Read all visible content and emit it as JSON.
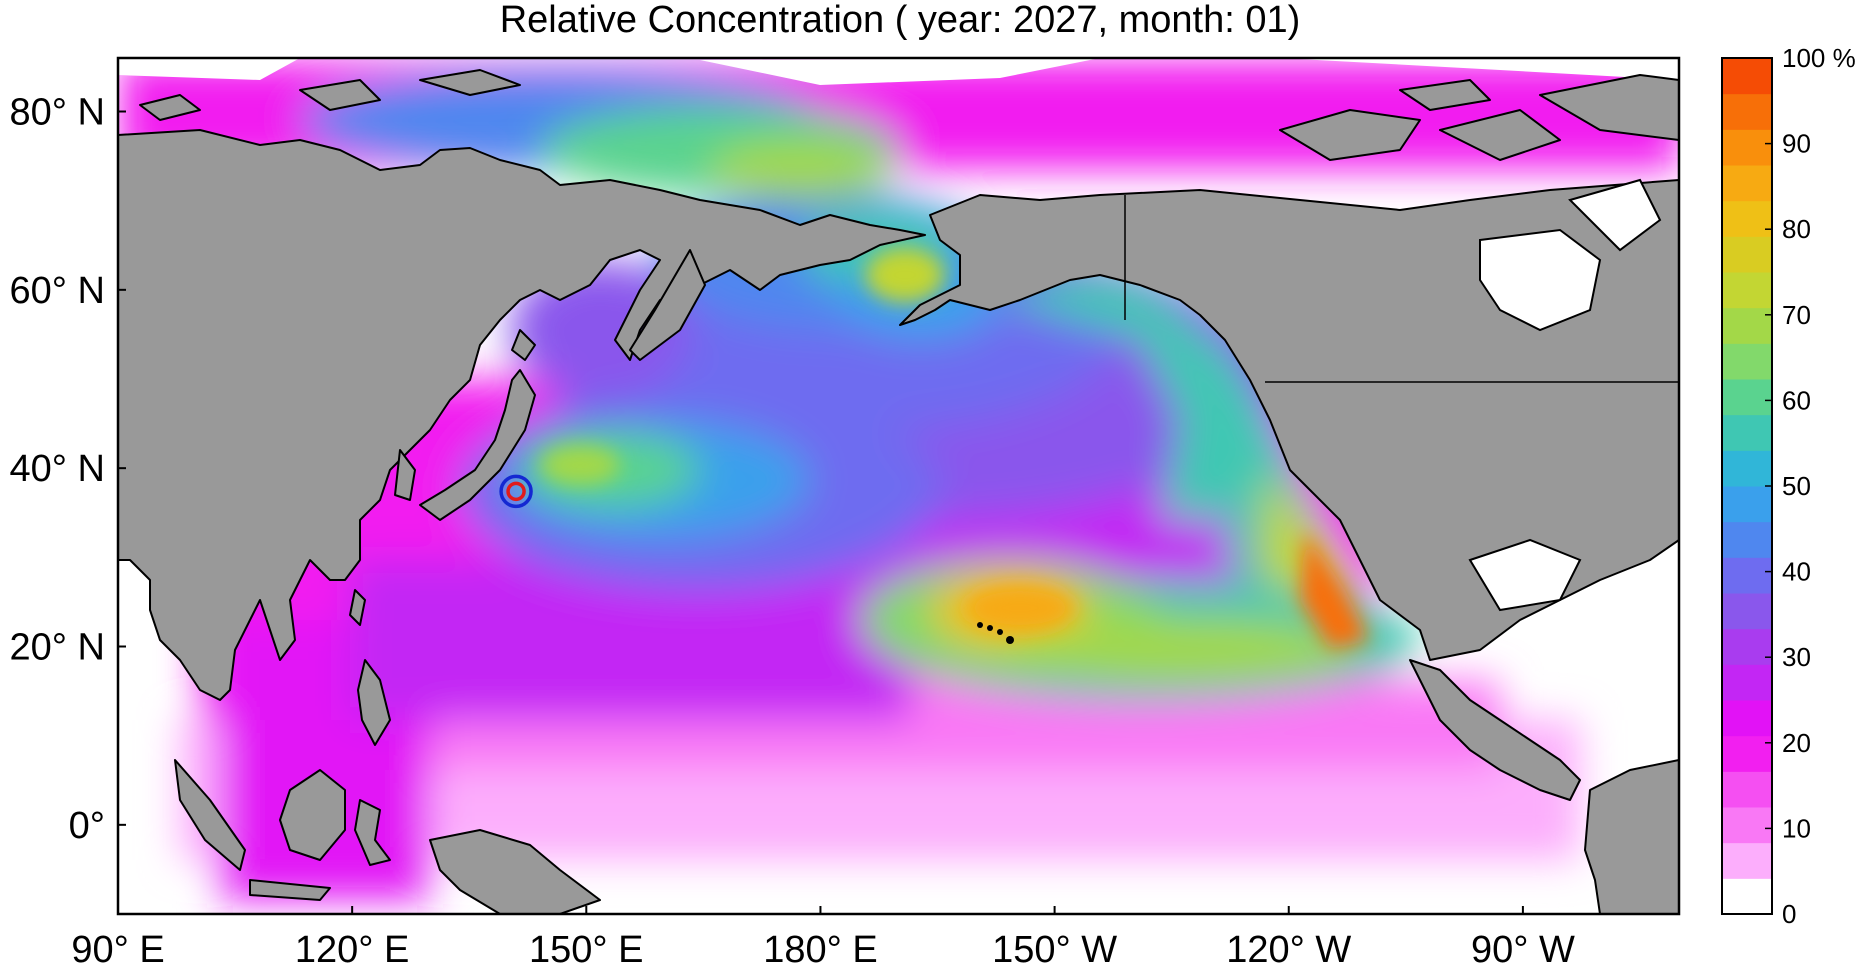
{
  "title": "Relative Concentration ( year: 2027, month: 01)",
  "map": {
    "lon_range": [
      90,
      290
    ],
    "lat_range": [
      -10,
      86
    ],
    "x_ticks": [
      {
        "lon": 90,
        "label": "90° E"
      },
      {
        "lon": 120,
        "label": "120° E"
      },
      {
        "lon": 150,
        "label": "150° E"
      },
      {
        "lon": 180,
        "label": "180° E"
      },
      {
        "lon": 210,
        "label": "150° W"
      },
      {
        "lon": 240,
        "label": "120° W"
      },
      {
        "lon": 270,
        "label": "90° W"
      }
    ],
    "y_ticks": [
      {
        "lat": 80,
        "label": "80° N"
      },
      {
        "lat": 60,
        "label": "60° N"
      },
      {
        "lat": 40,
        "label": "40° N"
      },
      {
        "lat": 20,
        "label": "20° N"
      },
      {
        "lat": 0,
        "label": "0°"
      }
    ],
    "source_marker": {
      "lon": 141.0,
      "lat": 37.4,
      "outer_color": "#1428d2",
      "inner_color": "#e11b1b"
    },
    "land_color": "#999999",
    "ocean_nodata_color": "#ffffff"
  },
  "colorbar": {
    "min": 0,
    "max": 100,
    "unit": "%",
    "tick_labels": [
      {
        "value": 100,
        "label": "100 %"
      },
      {
        "value": 90,
        "label": "90"
      },
      {
        "value": 80,
        "label": "80"
      },
      {
        "value": 70,
        "label": "70"
      },
      {
        "value": 60,
        "label": "60"
      },
      {
        "value": 50,
        "label": "50"
      },
      {
        "value": 40,
        "label": "40"
      },
      {
        "value": 30,
        "label": "30"
      },
      {
        "value": 20,
        "label": "20"
      },
      {
        "value": 10,
        "label": "10"
      },
      {
        "value": 0,
        "label": "0"
      }
    ],
    "bins": [
      "#ffffff",
      "#fcaefc",
      "#f978f5",
      "#f54ff2",
      "#f21ff0",
      "#e212f6",
      "#c326f4",
      "#a93cef",
      "#8a57ec",
      "#6e6cf0",
      "#4f87ef",
      "#3aa0ec",
      "#30b6d8",
      "#3fc7b3",
      "#5ad38f",
      "#82d96b",
      "#a3d848",
      "#c3d633",
      "#d9cc22",
      "#efc016",
      "#f7aa12",
      "#f98f0c",
      "#f76f08",
      "#f54c05"
    ]
  }
}
